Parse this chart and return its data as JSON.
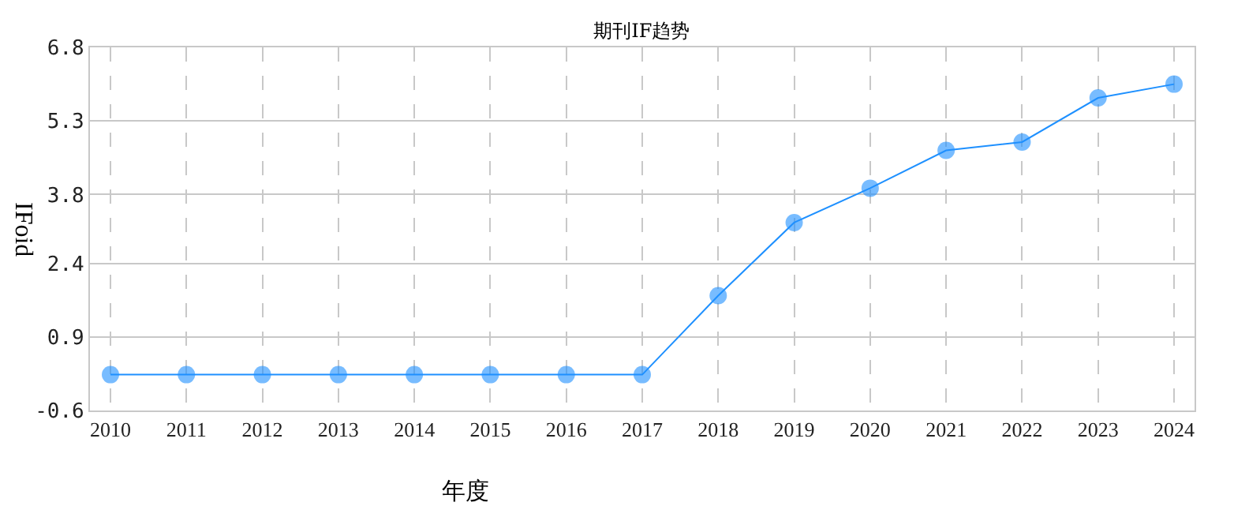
{
  "chart_data": {
    "type": "line",
    "title": "期刊IF趋势",
    "xlabel": "年度",
    "ylabel": "IFoid",
    "categories": [
      "2010",
      "2011",
      "2012",
      "2013",
      "2014",
      "2015",
      "2016",
      "2017",
      "2018",
      "2019",
      "2020",
      "2021",
      "2022",
      "2023",
      "2024"
    ],
    "series": [
      {
        "color": "#1e90ff",
        "values": [
          0.13,
          0.13,
          0.13,
          0.13,
          0.13,
          0.13,
          0.13,
          0.13,
          1.74,
          3.23,
          3.93,
          4.7,
          4.87,
          5.77,
          6.05
        ]
      }
    ],
    "ylim": [
      -0.6,
      6.8
    ],
    "yticks": [
      -0.6,
      0.9,
      2.4,
      3.8,
      5.3,
      6.8
    ],
    "grid": true,
    "marker": "circle",
    "line_style": "solid"
  }
}
